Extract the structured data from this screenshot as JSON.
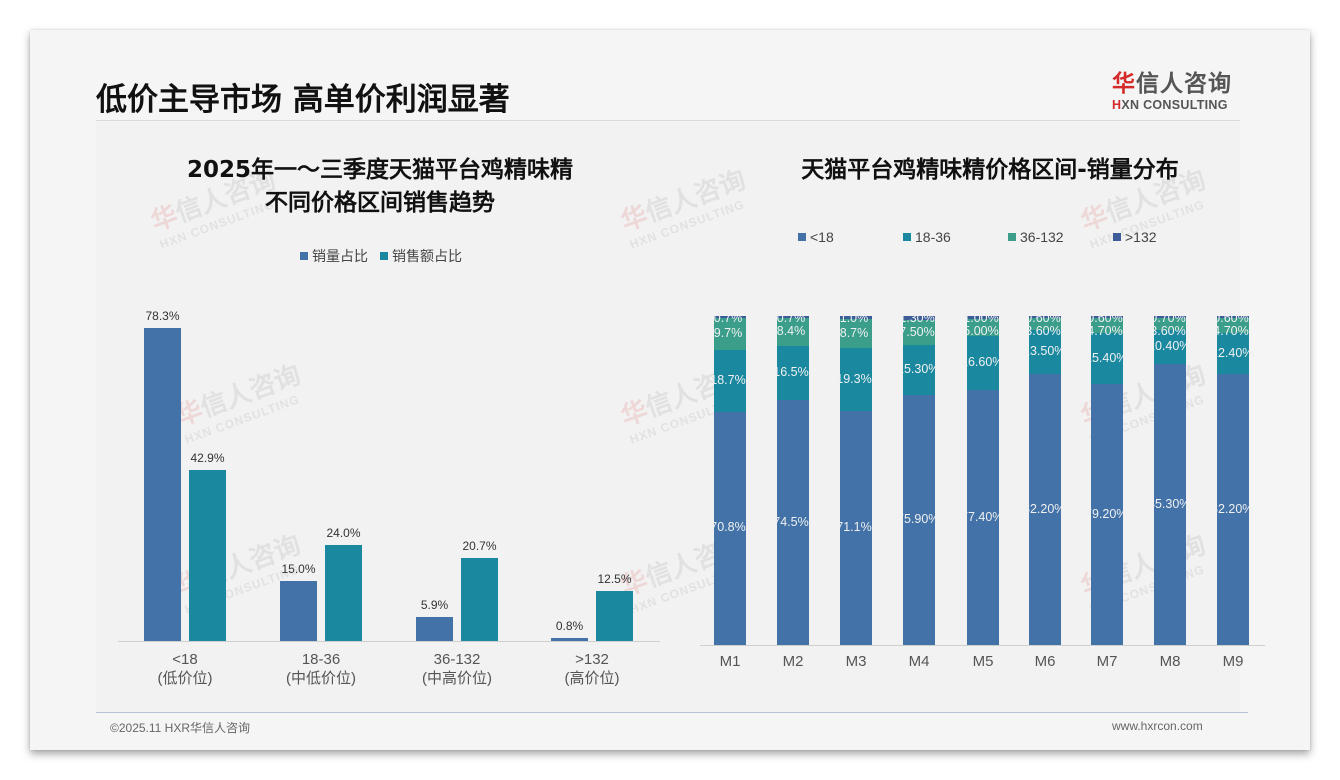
{
  "header": {
    "title": "低价主导市场 高单价利润显著",
    "logo": {
      "cn_red": "华",
      "cn_rest": "信人咨询",
      "en_red": "H",
      "en_rest": "XN CONSULTING"
    }
  },
  "watermark": {
    "cn_red": "华",
    "cn_rest": "信人咨询",
    "en": "HXN CONSULTING"
  },
  "colors": {
    "blue": "#4272a8",
    "teal": "#1a89a0",
    "green": "#3a9e8b",
    "navy": "#3c5d98",
    "background": "#f2f2f2"
  },
  "footer": {
    "copyright": "©2025.11 HXR华信人咨询",
    "url": "www.hxrcon.com"
  },
  "chart_data": [
    {
      "type": "bar",
      "title": "2025年一～三季度天猫平台鸡精味精不同价格区间销售趋势",
      "title_line1": "2025年一～三季度天猫平台鸡精味精",
      "title_line2": "不同价格区间销售趋势",
      "categories": [
        "<18",
        "18-36",
        "36-132",
        ">132"
      ],
      "category_sublabels": [
        "(低价位)",
        "(中低价位)",
        "(中高价位)",
        "(高价位)"
      ],
      "series": [
        {
          "name": "销量占比",
          "values": [
            78.3,
            15.0,
            5.9,
            0.8
          ],
          "labels": [
            "78.3%",
            "15.0%",
            "5.9%",
            "0.8%"
          ],
          "color": "#4272a8"
        },
        {
          "name": "销售额占比",
          "values": [
            42.9,
            24.0,
            20.7,
            12.5
          ],
          "labels": [
            "42.9%",
            "24.0%",
            "20.7%",
            "12.5%"
          ],
          "color": "#1a89a0"
        }
      ],
      "xlabel": "",
      "ylabel": "",
      "ylim": [
        0,
        80
      ],
      "grid": false,
      "legend_position": "top",
      "unit": "%"
    },
    {
      "type": "bar",
      "stacked": true,
      "percent_stacked": true,
      "title": "天猫平台鸡精味精价格区间-销量分布",
      "categories": [
        "M1",
        "M2",
        "M3",
        "M4",
        "M5",
        "M6",
        "M7",
        "M8",
        "M9"
      ],
      "series": [
        {
          "name": "<18",
          "color": "#4272a8",
          "values": [
            70.8,
            74.5,
            71.1,
            75.9,
            77.4,
            82.2,
            79.2,
            85.3,
            82.2
          ],
          "labels": [
            "70.8%",
            "74.5%",
            "71.1%",
            "75.90%",
            "77.40%",
            "82.20%",
            "79.20%",
            "85.30%",
            "82.20%"
          ]
        },
        {
          "name": "18-36",
          "color": "#1a89a0",
          "values": [
            18.7,
            16.5,
            19.3,
            15.3,
            16.6,
            13.5,
            15.4,
            10.4,
            12.4
          ],
          "labels": [
            "18.7%",
            "16.5%",
            "19.3%",
            "15.30%",
            "16.60%",
            "13.50%",
            "15.40%",
            "10.40%",
            "12.40%"
          ]
        },
        {
          "name": "36-132",
          "color": "#3a9e8b",
          "values": [
            9.7,
            8.4,
            8.7,
            7.5,
            5.0,
            3.6,
            4.7,
            3.6,
            4.7
          ],
          "labels": [
            "9.7%",
            "8.4%",
            "8.7%",
            "7.50%",
            "5.00%",
            "3.60%",
            "4.70%",
            "3.60%",
            "4.70%"
          ]
        },
        {
          "name": ">132",
          "color": "#3c5d98",
          "values": [
            0.7,
            0.7,
            1.0,
            1.3,
            1.0,
            0.6,
            0.6,
            0.7,
            0.6
          ],
          "labels": [
            "0.7%",
            "0.7%",
            "1.0%",
            "1.30%",
            "1.00%",
            "0.60%",
            "0.60%",
            "0.70%",
            "0.60%"
          ]
        }
      ],
      "xlabel": "",
      "ylabel": "",
      "ylim": [
        0,
        100
      ],
      "grid": false,
      "legend_position": "top",
      "unit": "%"
    }
  ]
}
